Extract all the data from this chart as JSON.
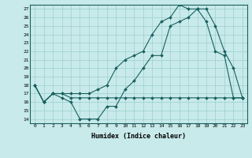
{
  "xlabel": "Humidex (Indice chaleur)",
  "background_color": "#c8eaea",
  "grid_color": "#9ecece",
  "line_color": "#1a6060",
  "xlim": [
    -0.5,
    23.5
  ],
  "ylim": [
    13.5,
    27.5
  ],
  "yticks": [
    14,
    15,
    16,
    17,
    18,
    19,
    20,
    21,
    22,
    23,
    24,
    25,
    26,
    27
  ],
  "xticks": [
    0,
    1,
    2,
    3,
    4,
    5,
    6,
    7,
    8,
    9,
    10,
    11,
    12,
    13,
    14,
    15,
    16,
    17,
    18,
    19,
    20,
    21,
    22,
    23
  ],
  "series1_x": [
    0,
    1,
    2,
    3,
    4,
    5,
    6,
    7,
    8,
    9,
    10,
    11,
    12,
    13,
    14,
    15,
    16,
    17,
    18,
    19,
    20,
    21,
    22,
    23
  ],
  "series1_y": [
    18.0,
    16.0,
    17.0,
    17.0,
    16.5,
    16.5,
    16.5,
    16.5,
    16.5,
    16.5,
    16.5,
    16.5,
    16.5,
    16.5,
    16.5,
    16.5,
    16.5,
    16.5,
    16.5,
    16.5,
    16.5,
    16.5,
    16.5,
    16.5
  ],
  "series2_x": [
    0,
    1,
    2,
    3,
    4,
    5,
    6,
    7,
    8,
    9,
    10,
    11,
    12,
    13,
    14,
    15,
    16,
    17,
    18,
    19,
    20,
    21,
    22,
    23
  ],
  "series2_y": [
    18.0,
    16.0,
    17.0,
    16.5,
    16.0,
    14.0,
    14.0,
    14.0,
    15.5,
    15.5,
    17.5,
    18.5,
    20.0,
    21.5,
    21.5,
    25.0,
    25.5,
    26.0,
    27.0,
    27.0,
    25.0,
    22.0,
    20.0,
    16.5
  ],
  "series3_x": [
    0,
    1,
    2,
    3,
    4,
    5,
    6,
    7,
    8,
    9,
    10,
    11,
    12,
    13,
    14,
    15,
    16,
    17,
    18,
    19,
    20,
    21,
    22,
    23
  ],
  "series3_y": [
    18.0,
    16.0,
    17.0,
    17.0,
    17.0,
    17.0,
    17.0,
    17.5,
    18.0,
    20.0,
    21.0,
    21.5,
    22.0,
    24.0,
    25.5,
    26.0,
    27.5,
    27.0,
    27.0,
    25.5,
    22.0,
    21.5,
    16.5,
    16.5
  ]
}
